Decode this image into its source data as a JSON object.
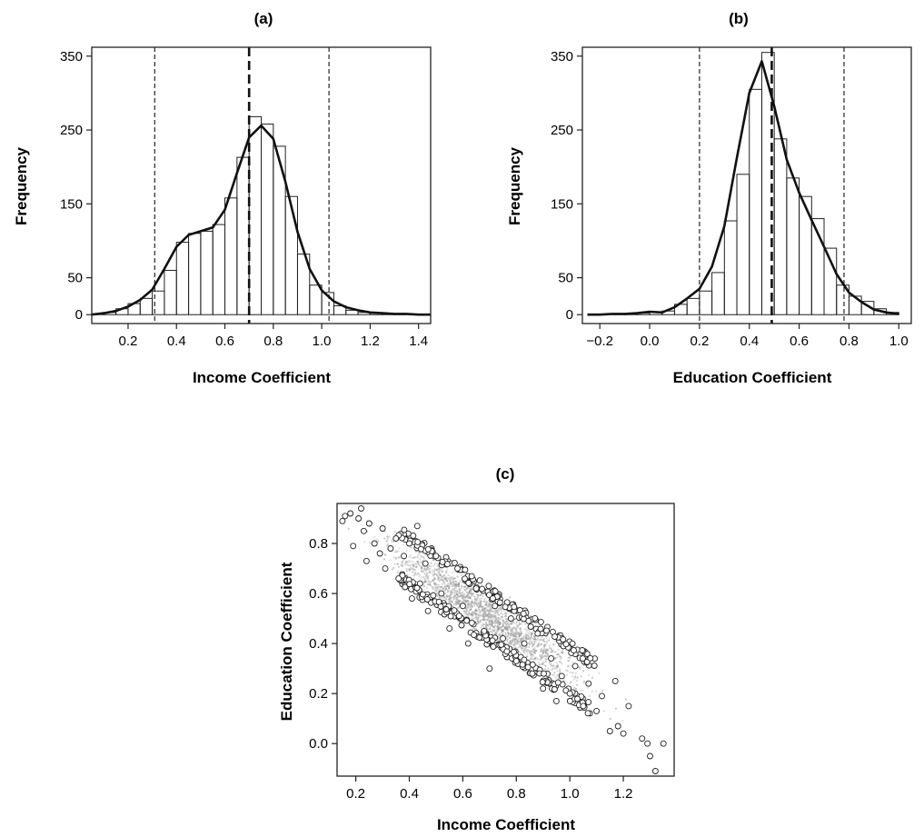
{
  "chart_data": [
    {
      "type": "bar",
      "panel": "(a)",
      "title": "(a)",
      "xlabel": "Income Coefficient",
      "ylabel": "Frequency",
      "xlim": [
        0.05,
        1.45
      ],
      "ylim": [
        -12,
        362
      ],
      "xticks": [
        "0.2",
        "0.4",
        "0.6",
        "0.8",
        "1.0",
        "1.2",
        "1.4"
      ],
      "yticks": [
        "0",
        "50",
        "150",
        "250",
        "350"
      ],
      "bin_width": 0.05,
      "bin_starts": [
        0.05,
        0.1,
        0.15,
        0.2,
        0.25,
        0.3,
        0.35,
        0.4,
        0.45,
        0.5,
        0.55,
        0.6,
        0.65,
        0.7,
        0.75,
        0.8,
        0.85,
        0.9,
        0.95,
        1.0,
        1.05,
        1.1,
        1.15,
        1.2,
        1.25,
        1.3,
        1.35,
        1.4
      ],
      "values": [
        1,
        3,
        8,
        15,
        22,
        32,
        60,
        98,
        110,
        113,
        122,
        158,
        213,
        268,
        258,
        228,
        160,
        82,
        40,
        30,
        12,
        6,
        3,
        2,
        1,
        1,
        0,
        0
      ],
      "density_curve": {
        "x": [
          0.05,
          0.1,
          0.15,
          0.2,
          0.25,
          0.3,
          0.35,
          0.4,
          0.45,
          0.5,
          0.55,
          0.6,
          0.65,
          0.7,
          0.75,
          0.8,
          0.85,
          0.9,
          0.95,
          1.0,
          1.05,
          1.1,
          1.15,
          1.2,
          1.25,
          1.3,
          1.35,
          1.4,
          1.45
        ],
        "y": [
          0,
          2,
          5,
          11,
          20,
          34,
          62,
          92,
          108,
          113,
          118,
          142,
          192,
          240,
          256,
          238,
          180,
          112,
          62,
          33,
          18,
          10,
          6,
          3,
          2,
          1,
          1,
          0,
          0
        ]
      },
      "reference_lines": [
        {
          "x": 0.31,
          "style": "dashed"
        },
        {
          "x": 0.7,
          "style": "dashed-bold"
        },
        {
          "x": 1.03,
          "style": "dashed"
        }
      ]
    },
    {
      "type": "bar",
      "panel": "(b)",
      "title": "(b)",
      "xlabel": "Education Coefficient",
      "ylabel": "Frequency",
      "xlim": [
        -0.27,
        1.05
      ],
      "ylim": [
        -12,
        362
      ],
      "xticks": [
        "−0.2",
        "0.0",
        "0.2",
        "0.4",
        "0.6",
        "0.8",
        "1.0"
      ],
      "xtick_values": [
        -0.2,
        0.0,
        0.2,
        0.4,
        0.6,
        0.8,
        1.0
      ],
      "yticks": [
        "0",
        "50",
        "150",
        "250",
        "350"
      ],
      "bin_width": 0.05,
      "bin_starts": [
        -0.25,
        -0.2,
        -0.15,
        -0.1,
        -0.05,
        0.0,
        0.05,
        0.1,
        0.15,
        0.2,
        0.25,
        0.3,
        0.35,
        0.4,
        0.45,
        0.5,
        0.55,
        0.6,
        0.65,
        0.7,
        0.75,
        0.8,
        0.85,
        0.9,
        0.95
      ],
      "values": [
        0,
        0,
        1,
        1,
        2,
        4,
        5,
        14,
        22,
        32,
        57,
        127,
        190,
        305,
        355,
        238,
        185,
        160,
        130,
        90,
        40,
        25,
        18,
        8,
        3
      ],
      "density_curve": {
        "x": [
          -0.25,
          -0.2,
          -0.15,
          -0.1,
          -0.05,
          0.0,
          0.05,
          0.1,
          0.15,
          0.2,
          0.25,
          0.3,
          0.35,
          0.4,
          0.45,
          0.5,
          0.55,
          0.6,
          0.65,
          0.7,
          0.75,
          0.8,
          0.85,
          0.9,
          0.95,
          1.0
        ],
        "y": [
          0,
          0,
          1,
          1,
          2,
          4,
          3,
          10,
          22,
          35,
          65,
          120,
          212,
          300,
          343,
          282,
          210,
          165,
          128,
          92,
          55,
          30,
          17,
          7,
          3,
          1
        ]
      },
      "reference_lines": [
        {
          "x": 0.2,
          "style": "dashed"
        },
        {
          "x": 0.49,
          "style": "dashed-bold"
        },
        {
          "x": 0.78,
          "style": "dashed"
        }
      ]
    },
    {
      "type": "scatter",
      "panel": "(c)",
      "title": "(c)",
      "xlabel": "Income Coefficient",
      "ylabel": "Education Coefficient",
      "xlim": [
        0.13,
        1.39
      ],
      "ylim": [
        -0.13,
        0.96
      ],
      "xticks": [
        "0.2",
        "0.4",
        "0.6",
        "0.8",
        "1.0",
        "1.2"
      ],
      "yticks": [
        "0.0",
        "0.2",
        "0.4",
        "0.6",
        "0.8"
      ],
      "relationship": {
        "slope": -0.73,
        "intercept": 1.02
      },
      "points": [
        [
          0.15,
          0.89
        ],
        [
          0.16,
          0.91
        ],
        [
          0.18,
          0.92
        ],
        [
          0.19,
          0.79
        ],
        [
          0.21,
          0.9
        ],
        [
          0.22,
          0.94
        ],
        [
          0.23,
          0.85
        ],
        [
          0.24,
          0.73
        ],
        [
          0.25,
          0.88
        ],
        [
          0.27,
          0.8
        ],
        [
          0.29,
          0.76
        ],
        [
          0.3,
          0.86
        ],
        [
          0.31,
          0.7
        ],
        [
          0.33,
          0.78
        ],
        [
          0.35,
          0.82
        ],
        [
          0.36,
          0.66
        ],
        [
          0.38,
          0.75
        ],
        [
          0.4,
          0.8
        ],
        [
          0.41,
          0.58
        ],
        [
          0.43,
          0.87
        ],
        [
          0.44,
          0.64
        ],
        [
          0.46,
          0.72
        ],
        [
          0.47,
          0.53
        ],
        [
          0.5,
          0.75
        ],
        [
          0.52,
          0.6
        ],
        [
          0.55,
          0.46
        ],
        [
          0.58,
          0.7
        ],
        [
          0.6,
          0.55
        ],
        [
          0.62,
          0.4
        ],
        [
          0.65,
          0.62
        ],
        [
          0.68,
          0.45
        ],
        [
          0.7,
          0.3
        ],
        [
          0.72,
          0.55
        ],
        [
          0.75,
          0.42
        ],
        [
          0.78,
          0.5
        ],
        [
          0.8,
          0.33
        ],
        [
          0.83,
          0.4
        ],
        [
          0.86,
          0.28
        ],
        [
          0.88,
          0.44
        ],
        [
          0.9,
          0.22
        ],
        [
          0.93,
          0.34
        ],
        [
          0.95,
          0.17
        ],
        [
          0.97,
          0.27
        ],
        [
          1.0,
          0.2
        ],
        [
          1.02,
          0.31
        ],
        [
          1.05,
          0.15
        ],
        [
          1.07,
          0.24
        ],
        [
          1.1,
          0.13
        ],
        [
          1.12,
          0.19
        ],
        [
          1.15,
          0.05
        ],
        [
          1.17,
          0.25
        ],
        [
          1.18,
          0.07
        ],
        [
          1.2,
          0.04
        ],
        [
          1.22,
          0.15
        ],
        [
          1.27,
          0.02
        ],
        [
          1.29,
          0.0
        ],
        [
          1.3,
          -0.05
        ],
        [
          1.32,
          -0.11
        ],
        [
          1.35,
          0.0
        ]
      ],
      "cloud": {
        "x_range": [
          0.38,
          1.0
        ],
        "n_points": 1800,
        "spread": 0.045
      }
    }
  ]
}
